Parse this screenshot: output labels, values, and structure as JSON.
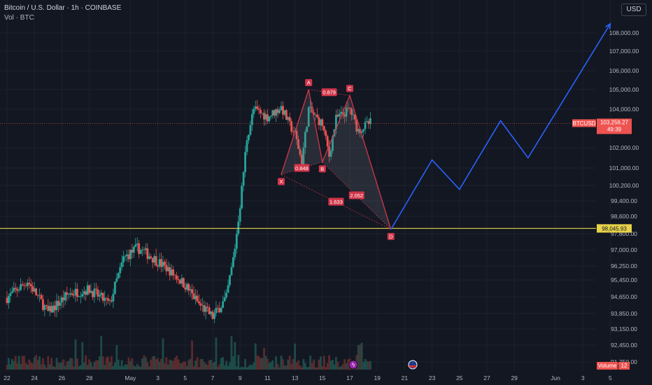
{
  "legend": {
    "title": "Bitcoin / U.S. Dollar · 1h · COINBASE",
    "volume": "Vol · BTC"
  },
  "currency_button": "USD",
  "colors": {
    "background": "#131722",
    "up": "#26a69a",
    "down": "#ef5350",
    "pattern": "#d1364a",
    "projection": "#2962ff",
    "support": "#e6d24a"
  },
  "chart_data": {
    "type": "candlestick",
    "symbol": "BTCUSD",
    "y_ticks": [
      "108,000.00",
      "107,000.00",
      "106,000.00",
      "105,000.00",
      "104,000.00",
      "102,000.00",
      "101,000.00",
      "100,200.00",
      "99,400.00",
      "98,600.00",
      "97,800.00",
      "97,000.00",
      "96,250.00",
      "95,450.00",
      "94,650.00",
      "93,850.00",
      "93,150.00",
      "92,450.00",
      "91,750.00"
    ],
    "y_tick_values": [
      108000,
      107000,
      106000,
      105000,
      104000,
      102000,
      101000,
      100200,
      99400,
      98600,
      97800,
      97000,
      96250,
      95450,
      94650,
      93850,
      93150,
      92450,
      91750
    ],
    "x_ticks": [
      "22",
      "24",
      "26",
      "28",
      "May",
      "3",
      "5",
      "7",
      "9",
      "11",
      "13",
      "15",
      "17",
      "19",
      "21",
      "23",
      "25",
      "27",
      "29",
      "Jun",
      "3",
      "5"
    ],
    "x_range": [
      "Apr 21",
      "Jun 6"
    ],
    "current_price": {
      "symbol": "BTCUSD",
      "price": "103,256.27",
      "countdown": "49:39",
      "value": 103256.27
    },
    "support_level": {
      "label": "98,045.93",
      "value": 98045.93
    },
    "harmonic_pattern": {
      "points": [
        {
          "name": "X",
          "date": "May 12",
          "price": 100700
        },
        {
          "name": "A",
          "date": "May 14",
          "price": 105000
        },
        {
          "name": "B",
          "date": "May 15",
          "price": 101300
        },
        {
          "name": "C",
          "date": "May 17",
          "price": 104700
        },
        {
          "name": "D",
          "date": "May 20",
          "price": 98000
        }
      ],
      "ratios": [
        {
          "label": "0.848",
          "between": [
            "X",
            "B"
          ]
        },
        {
          "label": "0.879",
          "between": [
            "A",
            "C"
          ]
        },
        {
          "label": "1.633",
          "between": [
            "X",
            "D"
          ]
        },
        {
          "label": "2.052",
          "between": [
            "B",
            "D"
          ]
        }
      ]
    },
    "projection_path": [
      {
        "date": "May 20",
        "price": 98000
      },
      {
        "date": "May 23",
        "price": 101400
      },
      {
        "date": "May 25",
        "price": 100000
      },
      {
        "date": "May 28",
        "price": 103400
      },
      {
        "date": "May 30",
        "price": 101500
      },
      {
        "date": "Jun 5",
        "price": 108500
      }
    ],
    "volume_label": "Volume",
    "volume_value": "12"
  }
}
